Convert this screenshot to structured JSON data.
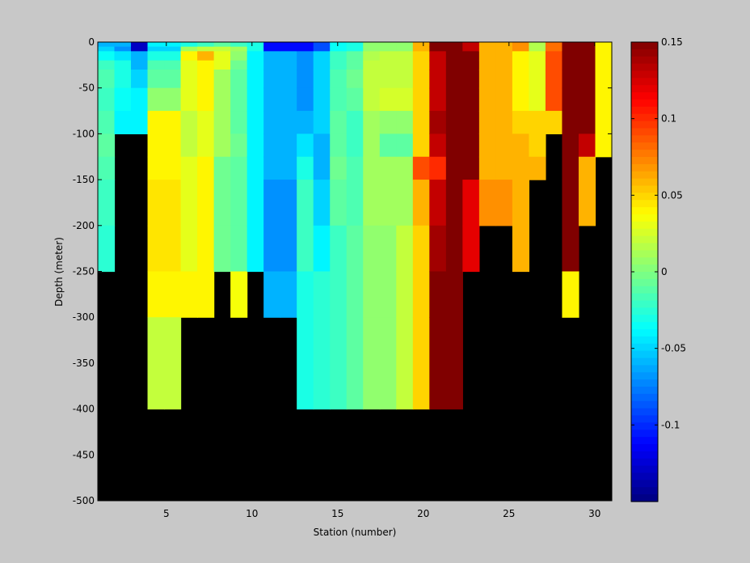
{
  "chart_data": [
    {
      "type": "heatmap",
      "title": "",
      "xlabel": "Station (number)",
      "ylabel": "Depth (meter)",
      "xlim": [
        1,
        31
      ],
      "ylim": [
        -500,
        0
      ],
      "x_ticks": [
        5,
        10,
        15,
        20,
        25,
        30
      ],
      "x_tick_labels": [
        "5",
        "10",
        "15",
        "20",
        "25",
        "30"
      ],
      "y_ticks": [
        0,
        -50,
        -100,
        -150,
        -200,
        -250,
        -300,
        -350,
        -400,
        -450,
        -500
      ],
      "y_tick_labels": [
        "0",
        "-50",
        "-100",
        "-150",
        "-200",
        "-250",
        "-300",
        "-350",
        "-400",
        "-450",
        "-500"
      ],
      "depth_levels": [
        0,
        -5,
        -10,
        -20,
        -30,
        -50,
        -75,
        -100,
        -125,
        -150,
        -200,
        -250,
        -300,
        -400
      ],
      "no_data_color": "#000000",
      "colormap": "jet",
      "clim": [
        -0.15,
        0.15
      ],
      "stations": [
        {
          "station": 1,
          "values": [
            -0.06,
            -0.05,
            -0.035,
            -0.02,
            -0.015,
            -0.02,
            -0.015,
            -0.01,
            -0.015,
            -0.02,
            -0.025
          ]
        },
        {
          "station": 2,
          "values": [
            -0.06,
            -0.07,
            -0.045,
            -0.03,
            -0.03,
            -0.035,
            -0.04
          ]
        },
        {
          "station": 3,
          "values": [
            -0.13,
            -0.13,
            -0.06,
            -0.06,
            -0.05,
            -0.04,
            -0.04
          ]
        },
        {
          "station": 4,
          "values": [
            -0.04,
            -0.05,
            -0.03,
            -0.015,
            -0.01,
            0.005,
            0.04,
            0.04,
            0.04,
            0.045,
            0.045,
            0.04,
            0.02
          ]
        },
        {
          "station": 5,
          "values": [
            -0.04,
            -0.05,
            -0.03,
            -0.015,
            -0.01,
            0.005,
            0.04,
            0.04,
            0.04,
            0.045,
            0.045,
            0.04,
            0.02
          ]
        },
        {
          "station": 6,
          "values": [
            -0.03,
            0.01,
            0.04,
            0.03,
            0.03,
            0.03,
            0.02,
            0.02,
            0.03,
            0.03,
            0.03,
            0.04
          ]
        },
        {
          "station": 7,
          "values": [
            -0.02,
            0.02,
            0.06,
            0.04,
            0.04,
            0.04,
            0.03,
            0.03,
            0.04,
            0.04,
            0.04,
            0.04
          ]
        },
        {
          "station": 8,
          "values": [
            -0.01,
            0.02,
            0.03,
            0.03,
            0.01,
            0.01,
            0.01,
            0.01,
            -0.005,
            -0.005,
            -0.005
          ]
        },
        {
          "station": 9,
          "values": [
            -0.02,
            0.01,
            0.005,
            -0.005,
            -0.01,
            -0.01,
            -0.01,
            -0.005,
            -0.01,
            -0.01,
            -0.01,
            0.035
          ]
        },
        {
          "station": 10,
          "values": [
            -0.03,
            -0.03,
            -0.04,
            -0.04,
            -0.04,
            -0.04,
            -0.04,
            -0.04,
            -0.04,
            -0.04,
            -0.04
          ]
        },
        {
          "station": 11,
          "values": [
            -0.11,
            -0.11,
            -0.06,
            -0.06,
            -0.06,
            -0.06,
            -0.06,
            -0.06,
            -0.06,
            -0.07,
            -0.07,
            -0.06
          ]
        },
        {
          "station": 12,
          "values": [
            -0.11,
            -0.11,
            -0.06,
            -0.06,
            -0.06,
            -0.06,
            -0.06,
            -0.06,
            -0.06,
            -0.07,
            -0.07,
            -0.06
          ]
        },
        {
          "station": 13,
          "values": [
            -0.11,
            -0.11,
            -0.07,
            -0.07,
            -0.07,
            -0.07,
            -0.06,
            -0.045,
            -0.03,
            -0.02,
            -0.02,
            -0.03,
            -0.03
          ]
        },
        {
          "station": 14,
          "values": [
            -0.09,
            -0.09,
            -0.05,
            -0.05,
            -0.05,
            -0.05,
            -0.05,
            -0.06,
            -0.06,
            -0.05,
            -0.04,
            -0.025,
            -0.025
          ]
        },
        {
          "station": 15,
          "values": [
            -0.035,
            -0.035,
            -0.02,
            -0.02,
            -0.015,
            -0.015,
            -0.01,
            -0.01,
            -0.005,
            -0.01,
            -0.02,
            -0.02,
            -0.02,
            -0.02
          ]
        },
        {
          "station": 16,
          "values": [
            -0.03,
            -0.03,
            -0.01,
            -0.01,
            -0.005,
            -0.01,
            -0.02,
            -0.02,
            -0.015,
            -0.015,
            -0.01,
            -0.01,
            -0.01,
            0.005
          ]
        },
        {
          "station": 17,
          "values": [
            0.005,
            0.005,
            0.015,
            0.02,
            0.02,
            0.02,
            0.01,
            0.01,
            0.01,
            0.01,
            0.005,
            0.005,
            0.005,
            0.005
          ]
        },
        {
          "station": 18,
          "values": [
            0.005,
            0.005,
            0.02,
            0.02,
            0.02,
            0.025,
            0.005,
            -0.01,
            0.01,
            0.01,
            0.005,
            0.005,
            0.005,
            0.02
          ]
        },
        {
          "station": 19,
          "values": [
            0.005,
            0.005,
            0.02,
            0.02,
            0.02,
            0.025,
            0.005,
            -0.01,
            0.01,
            0.01,
            0.02,
            0.02,
            0.02,
            0.02
          ]
        },
        {
          "station": 20,
          "values": [
            0.06,
            0.06,
            0.05,
            0.05,
            0.05,
            0.05,
            0.05,
            0.05,
            0.09,
            0.06,
            0.05,
            0.05,
            0.05
          ]
        },
        {
          "station": 21,
          "values": [
            0.15,
            0.15,
            0.13,
            0.13,
            0.13,
            0.13,
            0.14,
            0.13,
            0.1,
            0.13,
            0.14,
            0.15,
            0.15
          ]
        },
        {
          "station": 22,
          "values": [
            0.15,
            0.15,
            0.15,
            0.15,
            0.15,
            0.15,
            0.15,
            0.15,
            0.15,
            0.15,
            0.15,
            0.15,
            0.15
          ]
        },
        {
          "station": 23,
          "values": [
            0.13,
            0.13,
            0.15,
            0.15,
            0.15,
            0.15,
            0.15,
            0.15,
            0.15,
            0.12,
            0.12
          ]
        },
        {
          "station": 24,
          "values": [
            0.06,
            0.06,
            0.06,
            0.06,
            0.06,
            0.06,
            0.06,
            0.06,
            0.06,
            0.07
          ]
        },
        {
          "station": 25,
          "values": [
            0.06,
            0.06,
            0.06,
            0.06,
            0.06,
            0.06,
            0.06,
            0.06,
            0.06,
            0.07
          ]
        },
        {
          "station": 26,
          "values": [
            0.07,
            0.07,
            0.04,
            0.04,
            0.04,
            0.04,
            0.05,
            0.06,
            0.06,
            0.06,
            0.06
          ]
        },
        {
          "station": 27,
          "values": [
            0.015,
            0.015,
            0.03,
            0.03,
            0.03,
            0.03,
            0.05,
            0.05,
            0.06
          ]
        },
        {
          "station": 28,
          "values": [
            0.08,
            0.08,
            0.09,
            0.09,
            0.09,
            0.09,
            0.05
          ]
        },
        {
          "station": 29,
          "values": [
            0.15,
            0.15,
            0.15,
            0.15,
            0.15,
            0.15,
            0.15,
            0.15,
            0.15,
            0.15,
            0.15,
            0.04
          ]
        },
        {
          "station": 30,
          "values": [
            0.15,
            0.15,
            0.15,
            0.15,
            0.15,
            0.15,
            0.15,
            0.13,
            0.06,
            0.06
          ]
        },
        {
          "station": 31,
          "values": [
            0.04,
            0.04,
            0.04,
            0.04,
            0.04,
            0.04,
            0.04,
            0.04
          ]
        }
      ]
    },
    {
      "type": "colorbar",
      "orientation": "vertical",
      "placement": "right",
      "range": [
        -0.15,
        0.15
      ],
      "ticks": [
        0.15,
        0.1,
        0.05,
        0,
        -0.05,
        -0.1
      ],
      "tick_labels": [
        "0.15",
        "0.1",
        "0.05",
        "0",
        "-0.05",
        "-0.1"
      ],
      "steps": 64
    }
  ]
}
